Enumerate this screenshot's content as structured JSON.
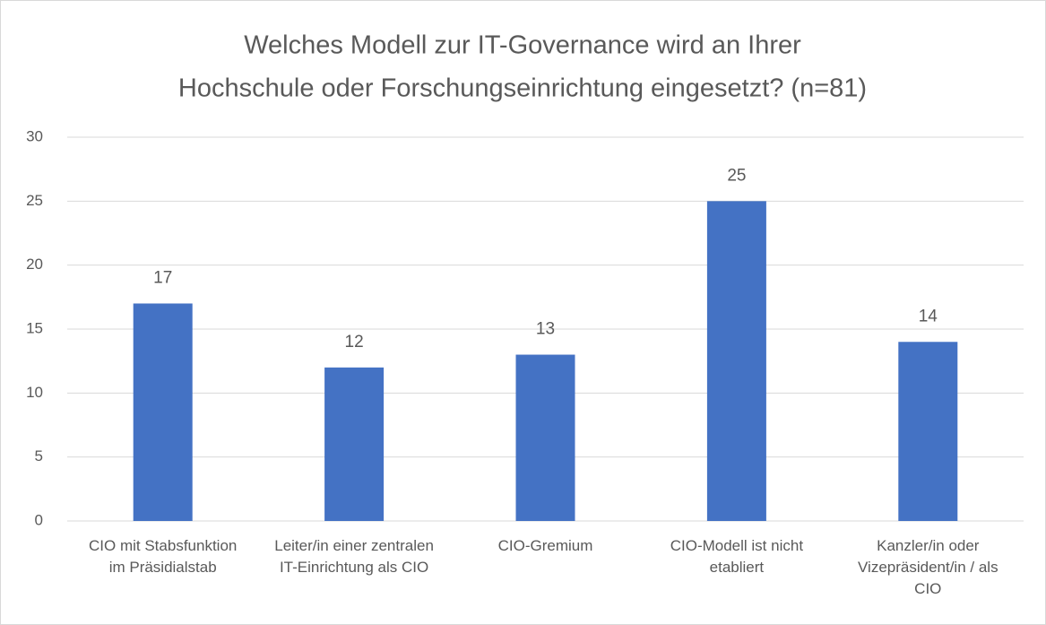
{
  "chart_data": {
    "type": "bar",
    "title": [
      "Welches Modell zur IT-Governance wird an Ihrer",
      "Hochschule oder Forschungseinrichtung eingesetzt? (n=81)"
    ],
    "categories": [
      "CIO mit Stabsfunktion im Präsidialstab",
      "Leiter/in einer zentralen IT-Einrichtung als CIO",
      "CIO-Gremium",
      "CIO-Modell ist nicht etabliert",
      "Kanzler/in oder Vizepräsident/in / als CIO"
    ],
    "values": [
      17,
      12,
      13,
      25,
      14
    ],
    "color": "#4472c4",
    "ylim": [
      0,
      30
    ],
    "yticks": [
      0,
      5,
      10,
      15,
      20,
      25,
      30
    ],
    "grid": true
  }
}
